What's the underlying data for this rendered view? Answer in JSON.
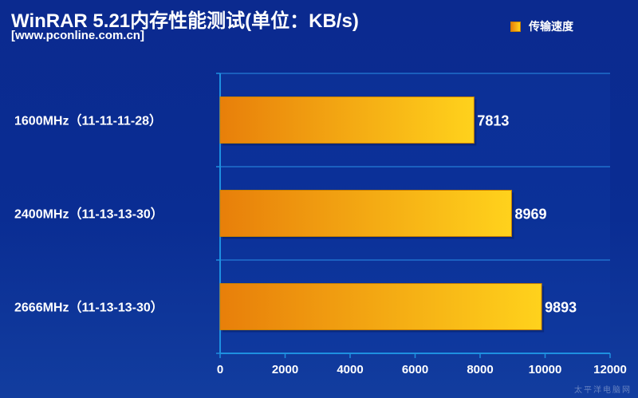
{
  "header": {
    "title": "WinRAR 5.21内存性能测试(单位：KB/s)",
    "subtitle": "[www.pconline.com.cn]"
  },
  "watermark": {
    "text": "太平洋电脑网"
  },
  "colors": {
    "background": "#0b2a8f",
    "axis": "#1e90e0",
    "grid": "#2a8fe6",
    "bar_start": "#e87f0a",
    "bar_end": "#ffd21c",
    "text": "#ffffff"
  },
  "chart_data": {
    "type": "bar",
    "orientation": "horizontal",
    "title": "WinRAR 5.21内存性能测试(单位：KB/s)",
    "categories": [
      "1600MHz（11-11-11-28）",
      "2400MHz（11-13-13-30）",
      "2666MHz（11-13-13-30）"
    ],
    "series": [
      {
        "name": "传输速度",
        "values": [
          7813,
          8969,
          9893
        ]
      }
    ],
    "xlim": [
      0,
      12000
    ],
    "xticks": [
      0,
      2000,
      4000,
      6000,
      8000,
      10000,
      12000
    ],
    "xlabel": "",
    "ylabel": "",
    "legend_position": "top-right",
    "grid": true
  }
}
